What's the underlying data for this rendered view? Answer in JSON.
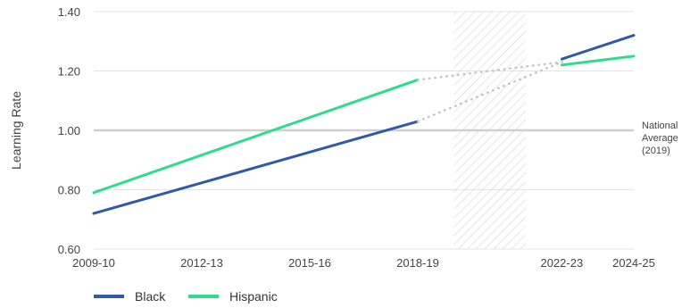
{
  "chart_data": {
    "type": "line",
    "ylabel": "Learning Rate",
    "xlabel": "",
    "ylim": [
      0.6,
      1.4
    ],
    "yticks": [
      "0.60",
      "0.80",
      "1.00",
      "1.20",
      "1.40"
    ],
    "x_ticks": [
      "2009-10",
      "2012-13",
      "2015-16",
      "2018-19",
      "2022-23",
      "2024-25"
    ],
    "grid": "horizontal",
    "shaded_period": {
      "from": "2019-20",
      "to": "2021-22",
      "pattern": "diagonal hatch"
    },
    "reference_line": {
      "y": 1.0,
      "label": [
        "National",
        "Average",
        "(2019)"
      ]
    },
    "legend": {
      "position": "bottom-left"
    },
    "series": [
      {
        "name": "Black",
        "color": "#2f5aa8",
        "segments": [
          {
            "style": "solid",
            "points": [
              [
                "2009-10",
                0.72
              ],
              [
                "2018-19",
                1.03
              ]
            ]
          },
          {
            "style": "dotted",
            "points": [
              [
                "2018-19",
                1.03
              ],
              [
                "2022-23",
                1.23
              ]
            ]
          },
          {
            "style": "solid",
            "points": [
              [
                "2022-23",
                1.24
              ],
              [
                "2024-25",
                1.32
              ]
            ]
          }
        ]
      },
      {
        "name": "Hispanic",
        "color": "#2fdc8c",
        "segments": [
          {
            "style": "solid",
            "points": [
              [
                "2009-10",
                0.79
              ],
              [
                "2018-19",
                1.17
              ]
            ]
          },
          {
            "style": "dotted",
            "points": [
              [
                "2018-19",
                1.17
              ],
              [
                "2022-23",
                1.23
              ]
            ]
          },
          {
            "style": "solid",
            "points": [
              [
                "2022-23",
                1.22
              ],
              [
                "2024-25",
                1.25
              ]
            ]
          }
        ]
      }
    ]
  }
}
